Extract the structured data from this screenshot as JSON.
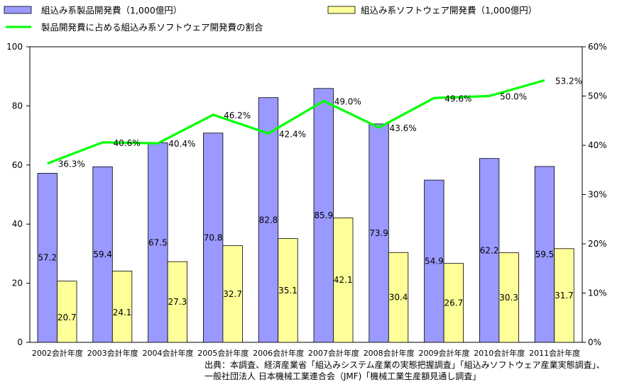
{
  "chart_data": {
    "type": "bar",
    "categories": [
      "2002会計年度",
      "2003会計年度",
      "2004会計年度",
      "2005会計年度",
      "2006会計年度",
      "2007会計年度",
      "2008会計年度",
      "2009会計年度",
      "2010会計年度",
      "2011会計年度"
    ],
    "series": [
      {
        "name": "組込み系製品開発費（1,000億円）",
        "type": "bar",
        "axis": "left",
        "color": "#9999ff",
        "values": [
          57.2,
          59.4,
          67.5,
          70.8,
          82.8,
          85.9,
          73.9,
          54.9,
          62.2,
          59.5
        ],
        "labels": [
          "57.2",
          "59.4",
          "67.5",
          "70.8",
          "82.8",
          "85.9",
          "73.9",
          "54.9",
          "62.2",
          "59.5"
        ]
      },
      {
        "name": "組込み系ソフトウェア開発費（1,000億円）",
        "type": "bar",
        "axis": "left",
        "color": "#ffff99",
        "values": [
          20.7,
          24.1,
          27.3,
          32.7,
          35.1,
          42.1,
          30.4,
          26.7,
          30.3,
          31.7
        ],
        "labels": [
          "20.7",
          "24.1",
          "27.3",
          "32.7",
          "35.1",
          "42.1",
          "30.4",
          "26.7",
          "30.3",
          "31.7"
        ]
      },
      {
        "name": "製品開発費に占める組込み系ソフトウェア開発費の割合",
        "type": "line",
        "axis": "right",
        "color": "#00ff00",
        "values": [
          36.3,
          40.6,
          40.4,
          46.2,
          42.4,
          49.0,
          43.6,
          49.6,
          50.0,
          53.2
        ],
        "labels": [
          "36.3%",
          "40.6%",
          "40.4%",
          "46.2%",
          "42.4%",
          "49.0%",
          "43.6%",
          "49.6%",
          "50.0%",
          "53.2%"
        ]
      }
    ],
    "y_left": {
      "ylim": [
        0,
        100
      ],
      "ticks": [
        "0",
        "20",
        "40",
        "60",
        "80",
        "100"
      ]
    },
    "y_right": {
      "ylim": [
        0,
        60
      ],
      "ticks": [
        "0%",
        "10%",
        "20%",
        "30%",
        "40%",
        "50%",
        "60%"
      ]
    },
    "grid": false,
    "legend_position": "top-left"
  },
  "source": {
    "line1": "出典：本調査、経済産業省「組込みシステム産業の実態把握調査」「組込みソフトウェア産業実態調査」、",
    "line2": "一般社団法人 日本機械工業連合会（JMF)「機械工業生産額見通し調査」"
  }
}
